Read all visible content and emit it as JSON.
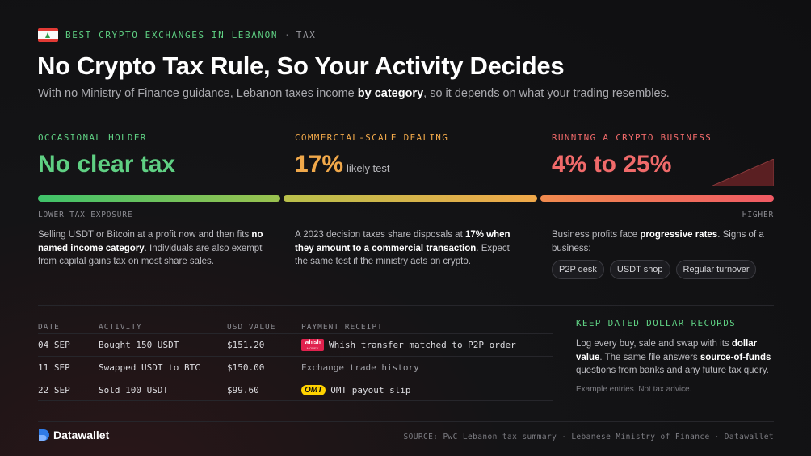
{
  "header": {
    "kicker": "BEST CRYPTO EXCHANGES IN LEBANON",
    "kicker_sep": "·",
    "kicker_tag": "TAX",
    "title": "No Crypto Tax Rule, So Your Activity Decides",
    "subtitle_pre": "With no Ministry of Finance guidance, Lebanon taxes income ",
    "subtitle_bold": "by category",
    "subtitle_post": ", so it depends on what your trading resembles."
  },
  "columns": [
    {
      "label": "OCCASIONAL HOLDER",
      "headline": "No clear tax",
      "desc_a": "Selling USDT or Bitcoin at a profit now and then fits ",
      "desc_bold": "no named income category",
      "desc_b": ". Individuals are also exempt from capital gains tax on most share sales."
    },
    {
      "label": "COMMERCIAL-SCALE DEALING",
      "headline": "17%",
      "headline_note": "likely test",
      "desc_a": "A 2023 decision taxes share disposals at ",
      "desc_bold": "17% when they amount to a commercial transaction",
      "desc_b": ". Expect the same test if the ministry acts on crypto."
    },
    {
      "label": "RUNNING A CRYPTO BUSINESS",
      "headline": "4% to 25%",
      "desc_a": "Business profits face ",
      "desc_bold": "progressive rates",
      "desc_b": ". Signs of a business:",
      "chips": [
        "P2P desk",
        "USDT shop",
        "Regular turnover"
      ]
    }
  ],
  "scale": {
    "low": "LOWER TAX EXPOSURE",
    "high": "HIGHER"
  },
  "table": {
    "headers": [
      "DATE",
      "ACTIVITY",
      "USD VALUE",
      "PAYMENT RECEIPT"
    ],
    "rows": [
      {
        "date": "04 SEP",
        "activity": "Bought 150 USDT",
        "usd": "$151.20",
        "receipt": "Whish transfer matched to P2P order",
        "badge": "whish"
      },
      {
        "date": "11 SEP",
        "activity": "Swapped USDT to BTC",
        "usd": "$150.00",
        "receipt": "Exchange trade history",
        "badge": ""
      },
      {
        "date": "22 SEP",
        "activity": "Sold 100 USDT",
        "usd": "$99.60",
        "receipt": "OMT payout slip",
        "badge": "omt"
      }
    ],
    "badges": {
      "whish_main": "whish",
      "whish_sub": "MONEY",
      "omt": "OMT"
    }
  },
  "note": {
    "title": "KEEP DATED DOLLAR RECORDS",
    "body_a": "Log every buy, sale and swap with its ",
    "body_bold1": "dollar value",
    "body_b": ". The same file answers ",
    "body_bold2": "source-of-funds",
    "body_c": " questions from banks and any future tax query.",
    "foot": "Example entries. Not tax advice."
  },
  "footer": {
    "brand": "Datawallet",
    "source_label": "SOURCE:",
    "source_1": "PwC Lebanon tax summary",
    "source_2": "Lebanese Ministry of Finance",
    "source_3": "Datawallet",
    "sep": "·"
  },
  "colors": {
    "green": "#5fd083",
    "orange": "#f0a84a",
    "red": "#f06a6a",
    "background": "#141416",
    "whish": "#e0224e",
    "omt": "#ffd200"
  }
}
